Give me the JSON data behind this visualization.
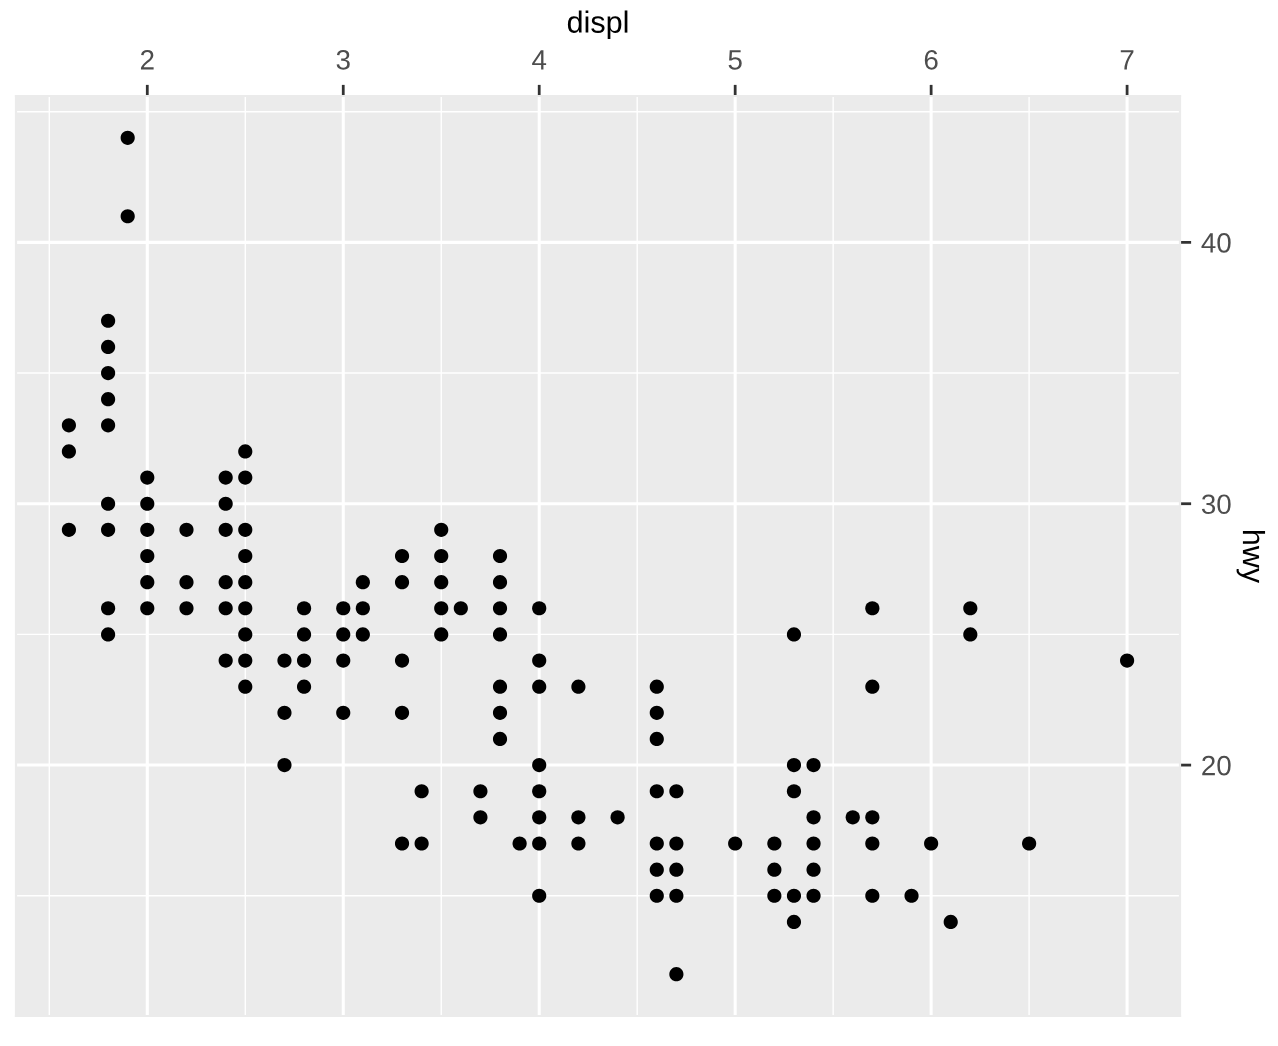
{
  "chart_data": {
    "type": "scatter",
    "xlabel": "displ",
    "ylabel": "hwy",
    "x": [
      1.6,
      1.6,
      1.6,
      1.8,
      1.8,
      1.8,
      1.8,
      1.8,
      1.8,
      1.8,
      1.8,
      1.8,
      1.9,
      1.9,
      2.0,
      2.0,
      2.0,
      2.0,
      2.0,
      2.0,
      2.2,
      2.2,
      2.2,
      2.4,
      2.4,
      2.4,
      2.4,
      2.4,
      2.4,
      2.5,
      2.5,
      2.5,
      2.5,
      2.5,
      2.5,
      2.5,
      2.5,
      2.5,
      2.7,
      2.7,
      2.7,
      2.8,
      2.8,
      2.8,
      2.8,
      3.0,
      3.0,
      3.0,
      3.0,
      3.1,
      3.1,
      3.1,
      3.3,
      3.3,
      3.3,
      3.3,
      3.3,
      3.4,
      3.4,
      3.5,
      3.5,
      3.5,
      3.5,
      3.5,
      3.6,
      3.7,
      3.7,
      3.8,
      3.8,
      3.8,
      3.8,
      3.8,
      3.8,
      3.8,
      3.9,
      4.0,
      4.0,
      4.0,
      4.0,
      4.0,
      4.0,
      4.0,
      4.0,
      4.2,
      4.2,
      4.2,
      4.4,
      4.6,
      4.6,
      4.6,
      4.6,
      4.6,
      4.6,
      4.6,
      4.7,
      4.7,
      4.7,
      4.7,
      4.7,
      5.0,
      5.2,
      5.2,
      5.2,
      5.3,
      5.3,
      5.3,
      5.3,
      5.3,
      5.4,
      5.4,
      5.4,
      5.4,
      5.4,
      5.6,
      5.7,
      5.7,
      5.7,
      5.7,
      5.7,
      5.9,
      6.0,
      6.1,
      6.2,
      6.2,
      6.5,
      7.0
    ],
    "values": [
      33,
      32,
      29,
      37,
      36,
      35,
      34,
      33,
      30,
      29,
      26,
      25,
      44,
      41,
      31,
      30,
      29,
      28,
      27,
      26,
      29,
      27,
      26,
      31,
      30,
      29,
      27,
      26,
      24,
      32,
      31,
      29,
      28,
      27,
      26,
      25,
      24,
      23,
      24,
      22,
      20,
      26,
      25,
      24,
      23,
      26,
      25,
      24,
      22,
      27,
      26,
      25,
      28,
      27,
      24,
      22,
      17,
      19,
      17,
      29,
      28,
      27,
      26,
      25,
      26,
      19,
      18,
      28,
      27,
      26,
      25,
      23,
      22,
      21,
      17,
      26,
      24,
      23,
      20,
      19,
      18,
      17,
      15,
      23,
      18,
      17,
      18,
      23,
      22,
      21,
      19,
      17,
      16,
      15,
      19,
      17,
      16,
      15,
      12,
      17,
      17,
      16,
      15,
      25,
      20,
      19,
      15,
      14,
      20,
      18,
      17,
      16,
      15,
      18,
      26,
      23,
      18,
      17,
      15,
      15,
      17,
      14,
      26,
      25,
      17,
      24
    ],
    "color": "#000000",
    "marker": "circle",
    "xlim": [
      1.33,
      7.27
    ],
    "xticks": [
      2,
      3,
      4,
      5,
      6,
      7
    ],
    "ylim": [
      10.4,
      45.6
    ],
    "yticks": [
      20,
      30,
      40
    ],
    "grid": true
  }
}
